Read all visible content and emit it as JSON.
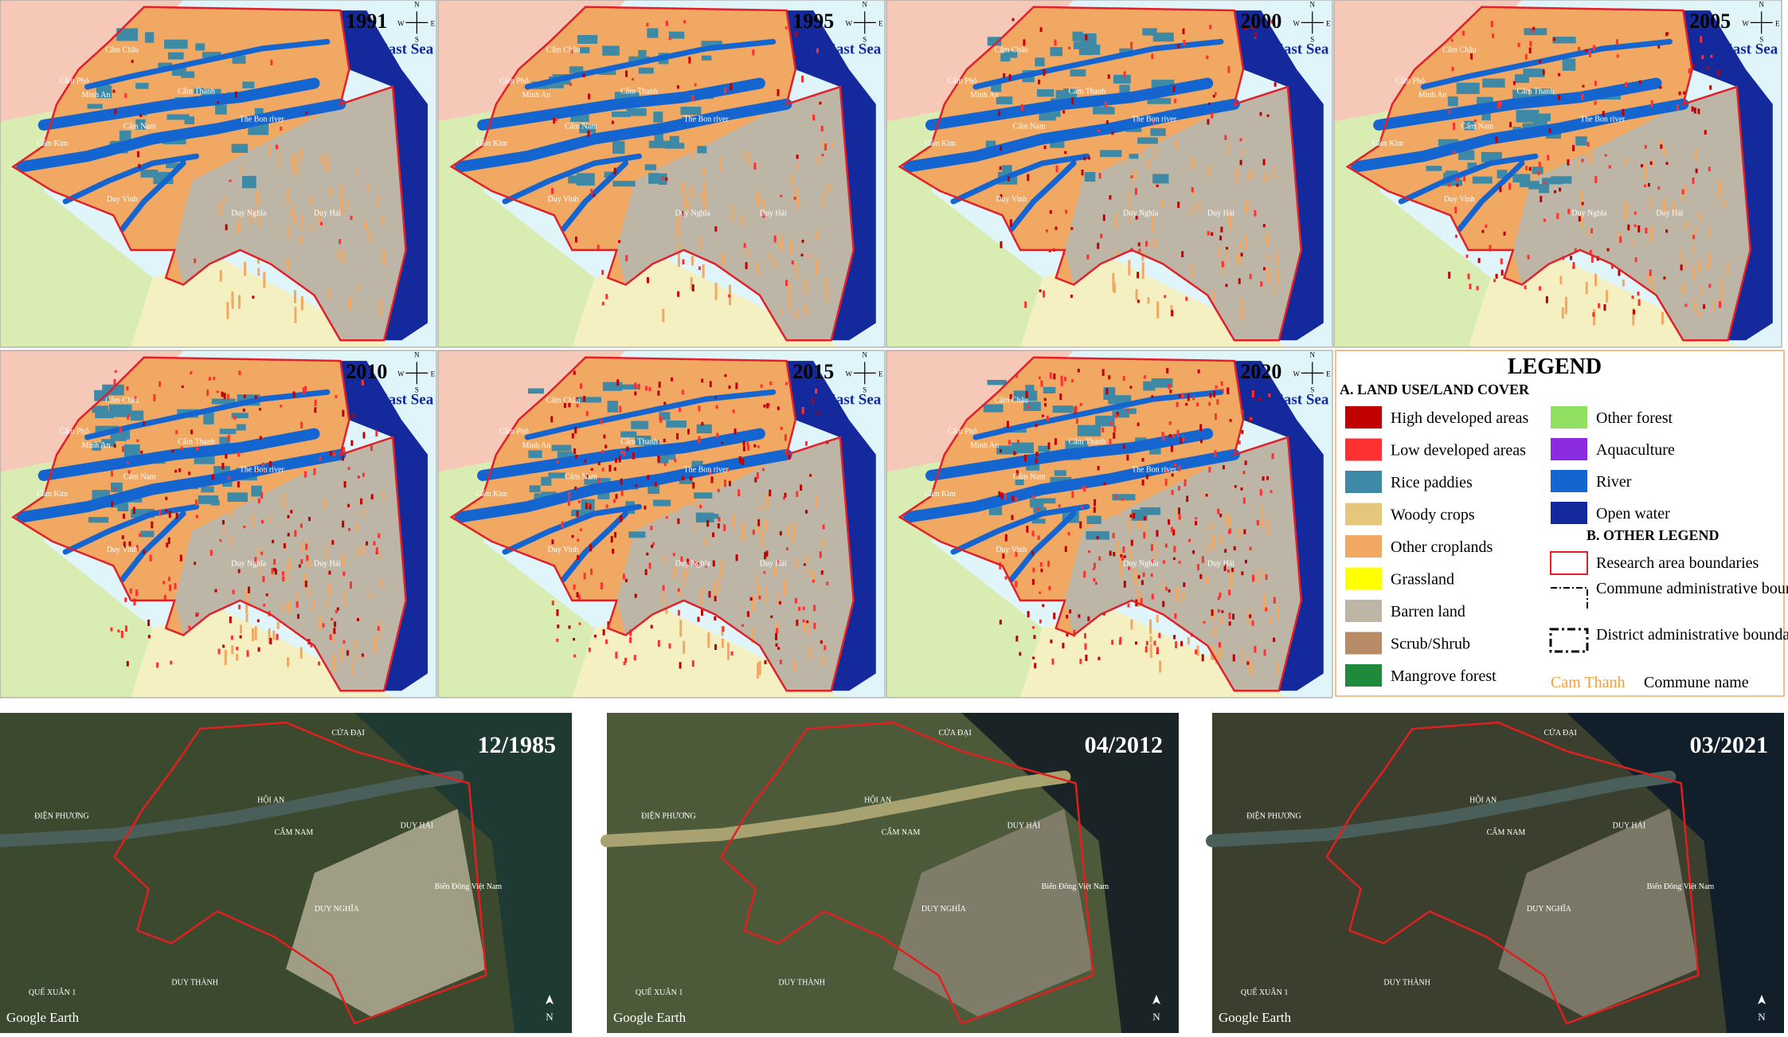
{
  "maps": [
    {
      "year": "1991"
    },
    {
      "year": "1995"
    },
    {
      "year": "2000"
    },
    {
      "year": "2005"
    },
    {
      "year": "2010"
    },
    {
      "year": "2015"
    },
    {
      "year": "2020"
    }
  ],
  "sea_label": "East Sea",
  "compass": [
    "N",
    "S",
    "W",
    "E"
  ],
  "commune_labels": [
    "Cẩm Châu",
    "Cẩm Phô",
    "Minh An",
    "Cẩm Thanh",
    "Cẩm Nam",
    "Cẩm Kim",
    "Duy Vinh",
    "Duy Nghĩa",
    "Duy Hải",
    "The Bon river"
  ],
  "legend": {
    "title": "LEGEND",
    "section_a": "A. LAND USE/LAND COVER",
    "classes": [
      {
        "name": "High developed areas",
        "color": "#c00000"
      },
      {
        "name": "Low developed areas",
        "color": "#ff3030"
      },
      {
        "name": "Rice paddies",
        "color": "#3e8aa6"
      },
      {
        "name": "Woody crops",
        "color": "#e6c67a"
      },
      {
        "name": "Other croplands",
        "color": "#f0a862"
      },
      {
        "name": "Grassland",
        "color": "#ffff00"
      },
      {
        "name": "Barren land",
        "color": "#bdb6a6"
      },
      {
        "name": "Scrub/Shrub",
        "color": "#b88a66"
      },
      {
        "name": "Mangrove forest",
        "color": "#1f8a3c"
      },
      {
        "name": "Other forest",
        "color": "#92e062"
      },
      {
        "name": "Aquaculture",
        "color": "#8a2be2"
      },
      {
        "name": "River",
        "color": "#1565d0"
      },
      {
        "name": "Open water",
        "color": "#13299c"
      }
    ],
    "section_b": "B. OTHER LEGEND",
    "research_area": "Research area boundaries",
    "commune_boundaries": "Commune administrative boundaries",
    "district_boundaries": "District administrative boundaries",
    "commune_sample": "Cam Thanh",
    "commune_caption": "Commune name"
  },
  "satellite": [
    {
      "date": "12/1985"
    },
    {
      "date": "04/2012"
    },
    {
      "date": "03/2021"
    }
  ],
  "satellite_watermark": "Google Earth",
  "satellite_north": "N",
  "satellite_places": [
    "HỘI AN",
    "CẨM NAM",
    "CỬA ĐẠI",
    "DUY HẢI",
    "DUY NGHĨA",
    "DUY THÀNH",
    "QUẾ XUÂN 1",
    "ĐIỆN PHƯƠNG",
    "Biển Đông Việt Nam"
  ]
}
